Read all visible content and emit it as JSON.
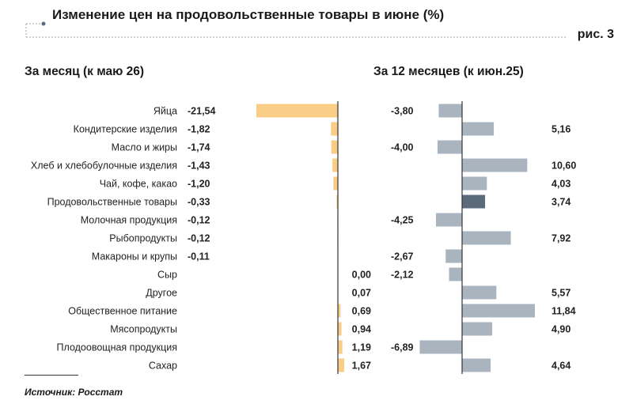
{
  "header": {
    "title": "Изменение цен на продовольственные товары в июне (%)",
    "figure_label": "рис. 3"
  },
  "source": "Источник: Росстат",
  "colors": {
    "monthly_bar": "#f9cd86",
    "yearly_bar": "#a9b4bf",
    "yearly_highlight": "#5b6b7c",
    "axis": "#333333",
    "dashed": "#9aa3ad"
  },
  "chart_data": [
    {
      "type": "bar",
      "orientation": "horizontal",
      "title": "За месяц (к маю 26)",
      "categories": [
        "Яйца",
        "Кондитерские изделия",
        "Масло и жиры",
        "Хлеб и хлебобулочные изделия",
        "Чай, кофе, какао",
        "Продовольственные товары",
        "Молочная продукция",
        "Рыбопродукты",
        "Макароны и крупы",
        "Сыр",
        "Другое",
        "Общественное питание",
        "Мясопродукты",
        "Плодоовощная продукция",
        "Сахар"
      ],
      "values": [
        -21.54,
        -1.82,
        -1.74,
        -1.43,
        -1.2,
        -0.33,
        -0.12,
        -0.12,
        -0.11,
        0.0,
        0.07,
        0.69,
        0.94,
        1.19,
        1.67
      ],
      "value_labels": [
        "-21,54",
        "-1,82",
        "-1,74",
        "-1,43",
        "-1,20",
        "-0,33",
        "-0,12",
        "-0,12",
        "-0,11",
        "0,00",
        "0,07",
        "0,69",
        "0,94",
        "1,19",
        "1,67"
      ],
      "xlim": [
        -21.54,
        1.67
      ]
    },
    {
      "type": "bar",
      "orientation": "horizontal",
      "title": "За 12 месяцев (к июн.25)",
      "categories": [
        "Яйца",
        "Кондитерские изделия",
        "Масло и жиры",
        "Хлеб и хлебобулочные изделия",
        "Чай, кофе, какао",
        "Продовольственные товары",
        "Молочная продукция",
        "Рыбопродукты",
        "Макароны и крупы",
        "Сыр",
        "Другое",
        "Общественное питание",
        "Мясопродукты",
        "Плодоовощная продукция",
        "Сахар"
      ],
      "values": [
        -3.8,
        5.16,
        -4.0,
        10.6,
        4.03,
        3.74,
        -4.25,
        7.92,
        -2.67,
        -2.12,
        5.57,
        11.84,
        4.9,
        -6.89,
        4.64
      ],
      "value_labels": [
        "-3,80",
        "5,16",
        "-4,00",
        "10,60",
        "4,03",
        "3,74",
        "-4,25",
        "7,92",
        "-2,67",
        "-2,12",
        "5,57",
        "11,84",
        "4,90",
        "-6,89",
        "4,64"
      ],
      "highlight": "Продовольственные товары",
      "xlim": [
        -6.89,
        11.84
      ]
    }
  ]
}
